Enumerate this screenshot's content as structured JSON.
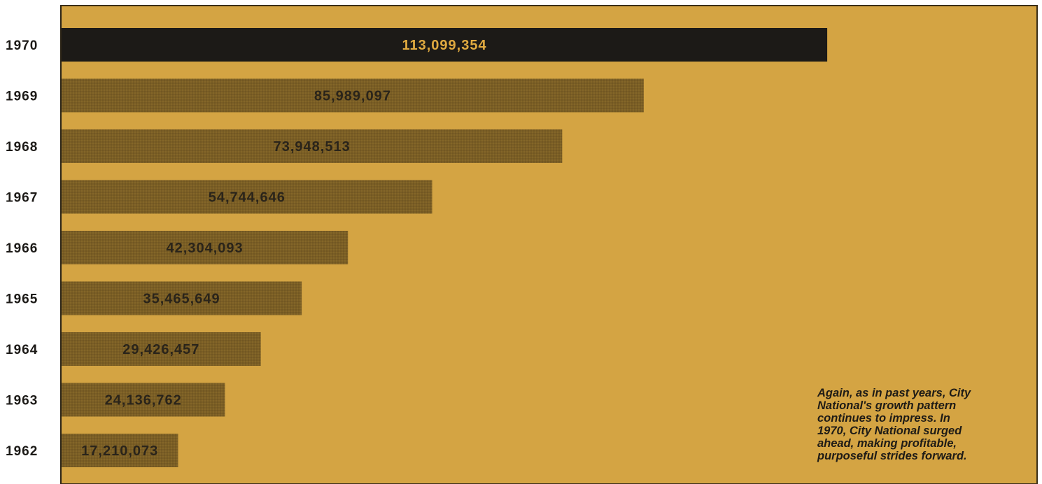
{
  "colors": {
    "panel_background": "#d4a443",
    "bar_standard": "#7a5e25",
    "bar_highlight": "#1c1a17",
    "label_on_standard": "#2a241a",
    "label_on_highlight": "#e0aa40"
  },
  "chart_data": {
    "type": "bar",
    "orientation": "horizontal",
    "categories": [
      "1970",
      "1969",
      "1968",
      "1967",
      "1966",
      "1965",
      "1964",
      "1963",
      "1962"
    ],
    "values": [
      113099354,
      85989097,
      73948513,
      54744646,
      42304093,
      35465649,
      29426457,
      24136762,
      17210073
    ],
    "data_labels": [
      "113,099,354",
      "85,989,097",
      "73,948,513",
      "54,744,646",
      "42,304,093",
      "35,465,649",
      "29,426,457",
      "24,136,762",
      "17,210,073"
    ],
    "highlighted_category": "1970",
    "title": "",
    "xlabel": "",
    "ylabel": "",
    "xlim": [
      0,
      144000000
    ],
    "grid": false,
    "legend": "none"
  },
  "caption": {
    "text": "Again, as in past years, City\nNational's growth pattern\ncontinues to impress. In\n1970, City National surged\nahead, making profitable,\npurposeful strides forward."
  }
}
